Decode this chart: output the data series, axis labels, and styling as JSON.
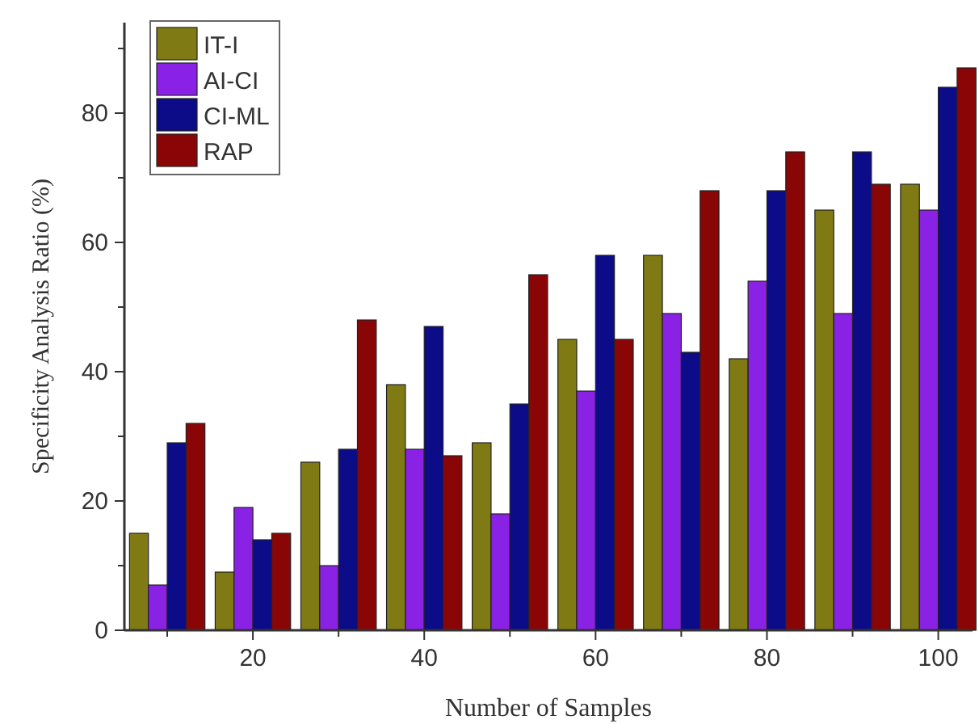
{
  "chart_data": {
    "type": "bar",
    "xlabel": "Number of Samples",
    "ylabel": "Specificity Analysis Ratio (%)",
    "x": [
      10,
      20,
      30,
      40,
      50,
      60,
      70,
      80,
      90,
      100
    ],
    "xlim": [
      5,
      104
    ],
    "xticks": [
      {
        "value": 10,
        "label": null
      },
      20,
      {
        "value": 30,
        "label": null
      },
      40,
      {
        "value": 50,
        "label": null
      },
      60,
      {
        "value": 70,
        "label": null
      },
      80,
      {
        "value": 90,
        "label": null
      },
      100
    ],
    "ylim": [
      0,
      94
    ],
    "yticks": [
      0,
      {
        "value": 10,
        "label": null
      },
      20,
      {
        "value": 30,
        "label": null
      },
      40,
      {
        "value": 50,
        "label": null
      },
      60,
      {
        "value": 70,
        "label": null
      },
      80,
      {
        "value": 90,
        "label": null
      }
    ],
    "legend": "top left",
    "grid": false,
    "series": [
      {
        "name": "IT-I",
        "color": "#7f7a14",
        "values": [
          15,
          9,
          26,
          38,
          29,
          45,
          58,
          42,
          65,
          69
        ]
      },
      {
        "name": "AI-CI",
        "color": "#8a22e6",
        "values": [
          7,
          19,
          10,
          28,
          18,
          37,
          49,
          54,
          49,
          65
        ]
      },
      {
        "name": "CI-ML",
        "color": "#0c0c88",
        "values": [
          29,
          14,
          28,
          47,
          35,
          58,
          43,
          68,
          74,
          84
        ]
      },
      {
        "name": "RAP",
        "color": "#8a0606",
        "values": [
          32,
          15,
          48,
          27,
          55,
          45,
          68,
          74,
          69,
          87
        ]
      }
    ]
  }
}
